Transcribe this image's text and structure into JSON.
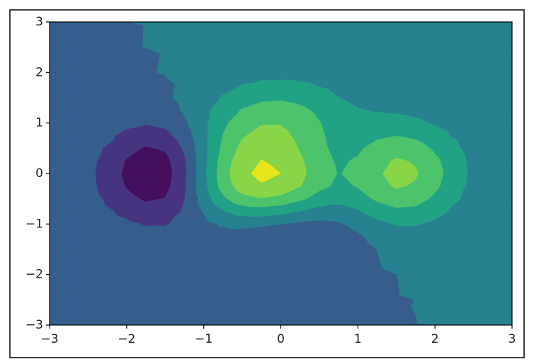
{
  "chart_data": {
    "type": "contourf",
    "x": [
      -3,
      -2.5,
      -2,
      -1.75,
      -1.5,
      -1.25,
      -1,
      -0.75,
      -0.5,
      -0.25,
      0,
      0.25,
      0.5,
      0.75,
      1,
      1.25,
      1.5,
      1.75,
      2,
      2.5,
      3
    ],
    "y": [
      -3,
      -2.5,
      -2,
      -1.5,
      -1.25,
      -1,
      -0.75,
      -0.5,
      -0.25,
      0,
      0.25,
      0.5,
      0.75,
      1,
      1.25,
      1.5,
      2,
      2.5,
      3
    ],
    "z": [
      [
        -4.07e-06,
        -2.92e-05,
        -0.000129,
        -0.00024,
        -0.000427,
        -0.000735,
        -0.0012,
        -0.00182,
        -0.00248,
        -0.003,
        -0.00321,
        -0.00303,
        -0.00252,
        -0.00184,
        -0.00116,
        -0.00061,
        -0.000249,
        -6.04e-05,
        1.13e-05,
        1.78e-05,
        3.24e-06
      ],
      [
        -6.1e-05,
        -0.000414,
        -0.00161,
        -0.00272,
        -0.00437,
        -0.0069,
        -0.01074,
        -0.01593,
        -0.02165,
        -0.02629,
        -0.02823,
        -0.02674,
        -0.02231,
        -0.01623,
        -0.01003,
        -0.00493,
        -0.00158,
        8.24e-05,
        0.000579,
        0.000305,
        5.4e-05
      ],
      [
        -0.000562,
        -0.00366,
        -0.0128,
        -0.0193,
        -0.0267,
        -0.0362,
        -0.0505,
        -0.0716,
        -0.0968,
        -0.1183,
        -0.1282,
        -0.1226,
        -0.103,
        -0.0745,
        -0.0438,
        -0.0176,
        -0.000301,
        0.00732,
        0.00805,
        0.00316,
        0.00053
      ],
      [
        -0.00317,
        -0.0201,
        -0.0644,
        -0.0883,
        -0.1024,
        -0.1061,
        -0.1115,
        -0.1344,
        -0.177,
        -0.2229,
        -0.2503,
        -0.2474,
        -0.2129,
        -0.1509,
        -0.0727,
        0.00115,
        0.0496,
        0.0649,
        0.0553,
        0.0191,
        0.00311
      ],
      [
        -0.00627,
        -0.0394,
        -0.1227,
        -0.1617,
        -0.1723,
        -0.1485,
        -0.1121,
        -0.0974,
        -0.1199,
        -0.1633,
        -0.1998,
        -0.2121,
        -0.1913,
        -0.1303,
        -0.0349,
        0.0648,
        0.1301,
        0.143,
        0.1154,
        0.0386,
        0.00622
      ],
      [
        -0.011,
        -0.0685,
        -0.2089,
        -0.2674,
        -0.2654,
        -0.1872,
        -0.0677,
        0.0289,
        0.0627,
        0.0429,
        0,
        -0.0429,
        -0.0627,
        -0.0289,
        0.0677,
        0.1872,
        0.2654,
        0.2674,
        0.2089,
        0.0685,
        0.011
      ],
      [
        -0.0169,
        -0.1054,
        -0.3176,
        -0.3987,
        -0.3763,
        -0.2208,
        0.0164,
        0.2324,
        0.3536,
        0.3758,
        0.3294,
        0.2431,
        0.1595,
        0.143,
        0.226,
        0.3589,
        0.4458,
        0.4295,
        0.3296,
        0.1067,
        0.017
      ],
      [
        -0.0231,
        -0.1436,
        -0.4298,
        -0.5341,
        -0.49,
        -0.2533,
        0.1074,
        0.4494,
        0.6634,
        0.7309,
        0.6815,
        0.5494,
        0.3981,
        0.3272,
        0.394,
        0.539,
        0.6336,
        0.5978,
        0.4548,
        0.1462,
        0.0233
      ],
      [
        -0.0279,
        -0.173,
        -0.5166,
        -0.6394,
        -0.5802,
        -0.2841,
        0.1674,
        0.6006,
        0.8803,
        0.9781,
        0.9247,
        0.7593,
        0.5602,
        0.4532,
        0.513,
        0.6717,
        0.7751,
        0.7259,
        0.5504,
        0.1766,
        0.0281
      ],
      [
        -0.0297,
        -0.1841,
        -0.5496,
        -0.6799,
        -0.616,
        -0.2991,
        0.184,
        0.6483,
        0.9492,
        1.0559,
        1,
        0.8229,
        0.6085,
        0.4913,
        0.5519,
        0.7183,
        0.8268,
        0.7735,
        0.5862,
        0.188,
        0.0299
      ],
      [
        -0.0279,
        -0.173,
        -0.516,
        -0.6381,
        -0.5771,
        -0.2779,
        0.1782,
        0.6173,
        0.9031,
        1.0057,
        0.9541,
        0.7868,
        0.583,
        0.4699,
        0.5238,
        0.6779,
        0.7782,
        0.7273,
        0.551,
        0.1766,
        0.0281
      ],
      [
        -0.0231,
        -0.1432,
        -0.4262,
        -0.525,
        -0.4695,
        -0.2125,
        0.1791,
        0.5603,
        0.8151,
        0.9138,
        0.8762,
        0.7323,
        0.5497,
        0.4381,
        0.4656,
        0.5798,
        0.6541,
        0.6069,
        0.4583,
        0.1466,
        0.0233
      ],
      [
        -0.0169,
        -0.1045,
        -0.3088,
        -0.3762,
        -0.3256,
        -0.12,
        0.1933,
        0.5064,
        0.7281,
        0.8275,
        0.8102,
        0.6947,
        0.5339,
        0.4169,
        0.4029,
        0.4597,
        0.4964,
        0.452,
        0.3384,
        0.1076,
        0.0171
      ],
      [
        -0.0109,
        -0.067,
        -0.1955,
        -0.2329,
        -0.1878,
        -0.0329,
        0.203,
        0.4481,
        0.6357,
        0.7341,
        0.7358,
        0.6484,
        0.5104,
        0.3904,
        0.3384,
        0.3414,
        0.3429,
        0.3018,
        0.2224,
        0.0699,
        0.0111
      ],
      [
        -0.00617,
        -0.0378,
        -0.1077,
        -0.1234,
        -0.086,
        0.0231,
        0.1892,
        0.3691,
        0.5178,
        0.6059,
        0.619,
        0.557,
        0.4464,
        0.3362,
        0.2663,
        0.2364,
        0.2164,
        0.1813,
        0.1304,
        0.0402,
        0.00632
      ],
      [
        -0.00308,
        -0.0187,
        -0.0514,
        -0.055,
        -0.0274,
        0.043,
        0.1503,
        0.271,
        0.3771,
        0.4455,
        0.4611,
        0.4209,
        0.3412,
        0.2545,
        0.189,
        0.1503,
        0.1246,
        0.0982,
        0.0683,
        0.0205,
        0.0032
      ],
      [
        -0.000526,
        -0.00309,
        -0.00738,
        -0.0056,
        0.00416,
        0.0252,
        0.0573,
        0.0954,
        0.1315,
        0.157,
        0.1649,
        0.1528,
        0.1253,
        0.0925,
        0.064,
        0.0439,
        0.0306,
        0.021,
        0.0134,
        0.00373,
        0.000566
      ],
      [
        -5.36e-05,
        -0.000297,
        -0.000508,
        9.81e-05,
        0.00199,
        0.00574,
        0.01145,
        0.01843,
        0.02532,
        0.03037,
        0.03209,
        0.02992,
        0.02466,
        0.01813,
        0.01216,
        0.00771,
        0.00477,
        0.0029,
        0.00168,
        0.000421,
        6.15e-05
      ],
      [
        -3.25e-06,
        -1.63e-05,
        -6.78e-06,
        7.19e-05,
        0.000275,
        0.000661,
        0.00125,
        0.00198,
        0.00271,
        0.00326,
        0.00346,
        0.00323,
        0.00267,
        0.00196,
        0.00129,
        0.000787,
        0.000453,
        0.000251,
        0.000133,
        2.96e-05,
        4.11e-06
      ]
    ],
    "levels": [
      -0.75,
      -0.5,
      -0.25,
      0,
      0.25,
      0.5,
      0.75,
      1,
      1.25
    ],
    "colors": [
      "#440f5d",
      "#463480",
      "#355e8d",
      "#26828e",
      "#22a284",
      "#4dc36b",
      "#88d547",
      "#eae51a"
    ],
    "xlim": [
      -3,
      3
    ],
    "ylim": [
      -3,
      3
    ],
    "xticks": [
      {
        "value": -3,
        "label": "−3"
      },
      {
        "value": -2,
        "label": "−2"
      },
      {
        "value": -1,
        "label": "−1"
      },
      0,
      1,
      2,
      3
    ],
    "yticks": [
      {
        "value": -3,
        "label": "−3"
      },
      {
        "value": -2,
        "label": "−2"
      },
      {
        "value": -1,
        "label": "−1"
      },
      0,
      1,
      2,
      3
    ]
  }
}
